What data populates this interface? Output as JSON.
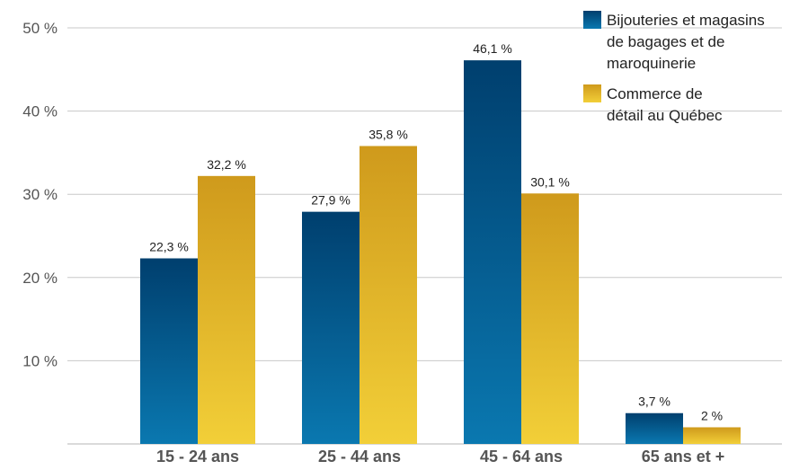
{
  "chart_data": {
    "type": "bar",
    "categories": [
      "15 - 24 ans",
      "25 - 44 ans",
      "45 - 64 ans",
      "65 ans et +"
    ],
    "series": [
      {
        "name": "Bijouteries et magasins de bagages et de maroquinerie",
        "legend_lines": [
          "Bijouteries et magasins",
          "de bagages et de",
          "maroquinerie"
        ],
        "values": [
          22.3,
          27.9,
          46.1,
          3.7
        ],
        "labels": [
          "22,3 %",
          "27,9 %",
          "46,1 %",
          "3,7 %"
        ],
        "color_top": "#003f6e",
        "color_bottom": "#0a78b0"
      },
      {
        "name": "Commerce de détail au Québec",
        "legend_lines": [
          "Commerce de",
          "détail au Québec"
        ],
        "values": [
          32.2,
          35.8,
          30.1,
          2.0
        ],
        "labels": [
          "32,2 %",
          "35,8 %",
          "30,1 %",
          "2 %"
        ],
        "color_top": "#cf9a1c",
        "color_bottom": "#f2cf38"
      }
    ],
    "yticks": [
      {
        "value": 10,
        "label": "10 %"
      },
      {
        "value": 20,
        "label": "20 %"
      },
      {
        "value": 30,
        "label": "30 %"
      },
      {
        "value": 40,
        "label": "40 %"
      },
      {
        "value": 50,
        "label": "50 %"
      }
    ],
    "ylim": [
      0,
      50
    ],
    "grid": true,
    "legend_position": "top-right",
    "title": "",
    "xlabel": "",
    "ylabel": ""
  }
}
